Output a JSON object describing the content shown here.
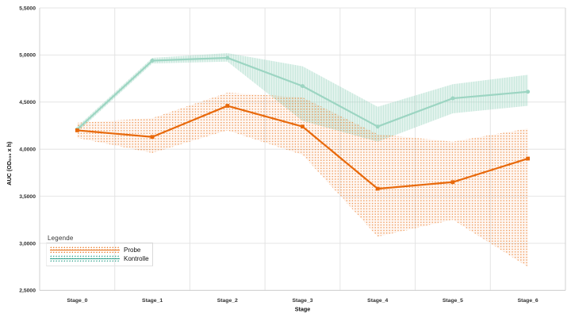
{
  "chart_data": {
    "type": "line",
    "title": "",
    "xlabel": "Stage",
    "ylabel": "AUC (OD₆₀₀ x h)",
    "categories": [
      "Stage_0",
      "Stage_1",
      "Stage_2",
      "Stage_3",
      "Stage_4",
      "Stage_5",
      "Stage_6"
    ],
    "ylim": [
      2.5,
      5.5
    ],
    "y_tick_values": [
      5.5,
      5.0,
      4.5,
      4.0,
      3.5,
      3.0,
      2.5
    ],
    "y_tick_labels": [
      "5,5000",
      "5,0000",
      "4,5000",
      "4,0000",
      "3,5000",
      "3,0000",
      "2,5000"
    ],
    "grid": true,
    "legend": {
      "title": "Legende",
      "position": "bottom-left"
    },
    "series": [
      {
        "name": "Probe",
        "color": "#e8690b",
        "legend_color": "#e87722",
        "marker": "square",
        "band_style": "dots",
        "values": [
          4.2,
          4.13,
          4.46,
          4.24,
          3.58,
          3.65,
          3.9
        ],
        "band_low": [
          4.12,
          3.96,
          4.2,
          3.94,
          3.07,
          3.25,
          2.75
        ],
        "band_high": [
          4.28,
          4.33,
          4.6,
          4.55,
          4.16,
          4.08,
          4.22
        ]
      },
      {
        "name": "Kontrolle",
        "color": "#9cd5c2",
        "legend_color": "#2fa28c",
        "marker": "circle",
        "band_style": "vlines",
        "values": [
          4.21,
          4.94,
          4.97,
          4.67,
          4.24,
          4.54,
          4.61
        ],
        "band_low": [
          4.18,
          4.91,
          4.93,
          4.3,
          4.08,
          4.38,
          4.46
        ],
        "band_high": [
          4.24,
          4.97,
          5.02,
          4.88,
          4.45,
          4.69,
          4.79
        ]
      }
    ],
    "grid_color": "#e4e4e4",
    "axis_color": "#d0d0d0",
    "tick_text_color": "#303030"
  }
}
